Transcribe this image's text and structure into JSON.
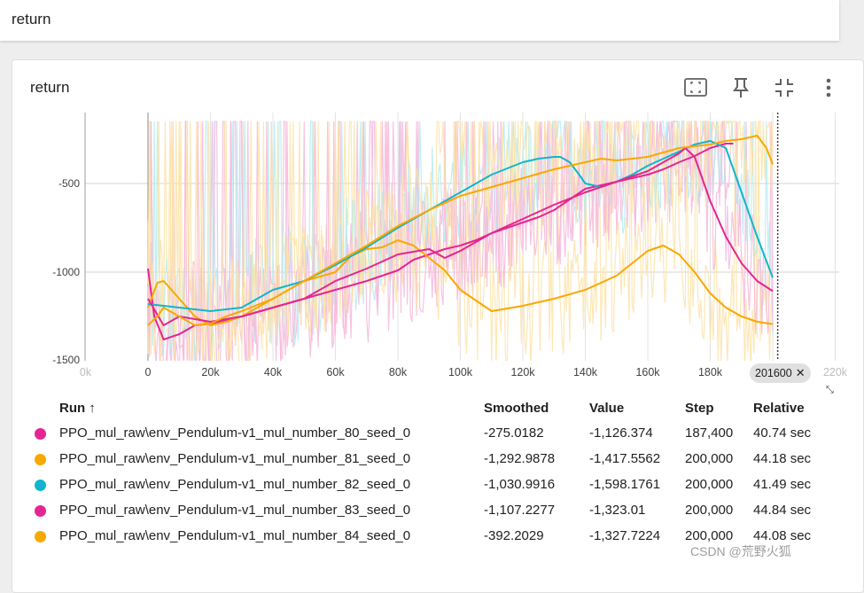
{
  "topbar": {
    "title": "return"
  },
  "card": {
    "title": "return",
    "tools": [
      {
        "name": "fit-to-screen-icon"
      },
      {
        "name": "pin-icon"
      },
      {
        "name": "collapse-icon"
      },
      {
        "name": "more-vert-icon"
      }
    ]
  },
  "chart_data": {
    "type": "line",
    "title": "",
    "xlabel": "",
    "ylabel": "",
    "xlim": [
      -20000,
      220000
    ],
    "ylim": [
      -1500,
      -100
    ],
    "y_ticks": [
      "-500",
      "-1000",
      "-1500"
    ],
    "x_ticks": [
      "0k",
      "0",
      "20k",
      "40k",
      "60k",
      "80k",
      "100k",
      "120k",
      "140k",
      "160k",
      "180k",
      "200k",
      "220k"
    ],
    "cursor_step": 201600,
    "cursor_label": "201600",
    "series": [
      {
        "name": "PPO_mul_raw\\env_Pendulum-v1_mul_number_80_seed_0",
        "color": "#e52592",
        "x": [
          0,
          2000,
          5000,
          10000,
          15000,
          20000,
          25000,
          30000,
          40000,
          50000,
          60000,
          70000,
          80000,
          85000,
          90000,
          95000,
          100000,
          105000,
          110000,
          115000,
          120000,
          125000,
          130000,
          135000,
          140000,
          145000,
          150000,
          160000,
          165000,
          170000,
          175000,
          180000,
          185000,
          187400
        ],
        "y": [
          -980,
          -1250,
          -1380,
          -1350,
          -1300,
          -1290,
          -1270,
          -1250,
          -1200,
          -1150,
          -1100,
          -1050,
          -990,
          -930,
          -900,
          -870,
          -850,
          -820,
          -780,
          -750,
          -720,
          -690,
          -650,
          -590,
          -530,
          -510,
          -490,
          -450,
          -420,
          -380,
          -345,
          -300,
          -275,
          -275
        ]
      },
      {
        "name": "PPO_mul_raw\\env_Pendulum-v1_mul_number_81_seed_0",
        "color": "#f9a800",
        "x": [
          0,
          3000,
          5000,
          10000,
          15000,
          20000,
          25000,
          30000,
          40000,
          50000,
          60000,
          65000,
          70000,
          75000,
          80000,
          85000,
          90000,
          95000,
          100000,
          105000,
          110000,
          120000,
          130000,
          140000,
          150000,
          160000,
          165000,
          170000,
          175000,
          180000,
          185000,
          190000,
          195000,
          200000
        ],
        "y": [
          -1200,
          -1060,
          -1050,
          -1150,
          -1250,
          -1300,
          -1280,
          -1250,
          -1150,
          -1050,
          -1000,
          -910,
          -870,
          -860,
          -820,
          -850,
          -920,
          -990,
          -1100,
          -1160,
          -1220,
          -1190,
          -1150,
          -1100,
          -1020,
          -880,
          -850,
          -900,
          -1000,
          -1120,
          -1200,
          -1250,
          -1280,
          -1293
        ]
      },
      {
        "name": "PPO_mul_raw\\env_Pendulum-v1_mul_number_82_seed_0",
        "color": "#12b5cb",
        "x": [
          0,
          5000,
          10000,
          20000,
          30000,
          40000,
          50000,
          60000,
          70000,
          80000,
          90000,
          100000,
          110000,
          120000,
          125000,
          130000,
          132000,
          135000,
          138000,
          140000,
          145000,
          150000,
          155000,
          160000,
          165000,
          170000,
          175000,
          180000,
          185000,
          190000,
          195000,
          200000
        ],
        "y": [
          -1180,
          -1190,
          -1200,
          -1220,
          -1200,
          -1100,
          -1050,
          -960,
          -860,
          -750,
          -650,
          -550,
          -450,
          -380,
          -360,
          -350,
          -350,
          -380,
          -450,
          -500,
          -520,
          -490,
          -450,
          -400,
          -360,
          -320,
          -280,
          -260,
          -300,
          -550,
          -800,
          -1031
        ]
      },
      {
        "name": "PPO_mul_raw\\env_Pendulum-v1_mul_number_83_seed_0",
        "color": "#e52592",
        "x": [
          0,
          5000,
          10000,
          20000,
          30000,
          40000,
          50000,
          60000,
          70000,
          80000,
          90000,
          95000,
          100000,
          110000,
          120000,
          130000,
          140000,
          150000,
          160000,
          170000,
          172000,
          175000,
          180000,
          185000,
          190000,
          195000,
          200000
        ],
        "y": [
          -1150,
          -1300,
          -1250,
          -1280,
          -1250,
          -1200,
          -1150,
          -1050,
          -980,
          -900,
          -870,
          -920,
          -880,
          -780,
          -700,
          -620,
          -550,
          -490,
          -430,
          -330,
          -300,
          -350,
          -600,
          -800,
          -950,
          -1050,
          -1107
        ]
      },
      {
        "name": "PPO_mul_raw\\env_Pendulum-v1_mul_number_84_seed_0",
        "color": "#f9a800",
        "x": [
          0,
          3000,
          5000,
          10000,
          15000,
          20000,
          25000,
          30000,
          40000,
          50000,
          60000,
          70000,
          80000,
          90000,
          100000,
          110000,
          120000,
          130000,
          140000,
          145000,
          150000,
          160000,
          170000,
          180000,
          185000,
          190000,
          195000,
          198000,
          200000
        ],
        "y": [
          -1300,
          -1250,
          -1200,
          -1250,
          -1300,
          -1290,
          -1250,
          -1220,
          -1150,
          -1050,
          -950,
          -850,
          -740,
          -650,
          -570,
          -520,
          -470,
          -420,
          -380,
          -360,
          -370,
          -350,
          -300,
          -280,
          -260,
          -250,
          -230,
          -300,
          -392
        ]
      }
    ]
  },
  "table": {
    "headers": {
      "run": "Run",
      "sort_icon": "↑",
      "smoothed": "Smoothed",
      "value": "Value",
      "step": "Step",
      "relative": "Relative"
    },
    "rows": [
      {
        "run": "PPO_mul_raw\\env_Pendulum-v1_mul_number_80_seed_0",
        "color": "#e52592",
        "smoothed": "-275.0182",
        "value": "-1,126.374",
        "step": "187,400",
        "relative": "40.74 sec"
      },
      {
        "run": "PPO_mul_raw\\env_Pendulum-v1_mul_number_81_seed_0",
        "color": "#f9a800",
        "smoothed": "-1,292.9878",
        "value": "-1,417.5562",
        "step": "200,000",
        "relative": "44.18 sec"
      },
      {
        "run": "PPO_mul_raw\\env_Pendulum-v1_mul_number_82_seed_0",
        "color": "#12b5cb",
        "smoothed": "-1,030.9916",
        "value": "-1,598.1761",
        "step": "200,000",
        "relative": "41.49 sec"
      },
      {
        "run": "PPO_mul_raw\\env_Pendulum-v1_mul_number_83_seed_0",
        "color": "#e52592",
        "smoothed": "-1,107.2277",
        "value": "-1,323.01",
        "step": "200,000",
        "relative": "44.84 sec"
      },
      {
        "run": "PPO_mul_raw\\env_Pendulum-v1_mul_number_84_seed_0",
        "color": "#f9a800",
        "smoothed": "-392.2029",
        "value": "-1,327.7224",
        "step": "200,000",
        "relative": "44.08 sec"
      }
    ]
  },
  "watermark": "CSDN @荒野火狐"
}
